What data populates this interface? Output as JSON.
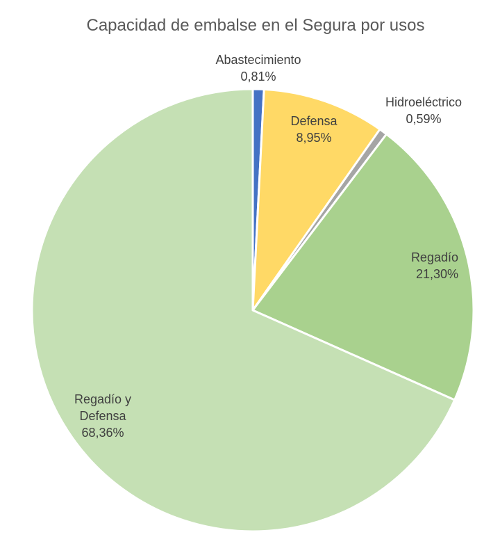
{
  "chart_data": {
    "type": "pie",
    "title": "Capacidad de embalse en el Segura por usos",
    "slices": [
      {
        "label": "Abastecimiento",
        "label_lines": [
          "Abastecimiento"
        ],
        "value": 0.81,
        "value_label": "0,81%",
        "color": "#4472C4"
      },
      {
        "label": "Defensa",
        "label_lines": [
          "Defensa"
        ],
        "value": 8.95,
        "value_label": "8,95%",
        "color": "#FFD966"
      },
      {
        "label": "Hidroeléctrico",
        "label_lines": [
          "Hidroeléctrico"
        ],
        "value": 0.59,
        "value_label": "0,59%",
        "color": "#A5A5A5"
      },
      {
        "label": "Regadío",
        "label_lines": [
          "Regadío"
        ],
        "value": 21.3,
        "value_label": "21,30%",
        "color": "#A9D18E"
      },
      {
        "label": "Regadío y Defensa",
        "label_lines": [
          "Regadío y",
          "Defensa"
        ],
        "value": 68.36,
        "value_label": "68,36%",
        "color": "#C5E0B4"
      }
    ],
    "start_angle": "12 o'clock",
    "direction": "clockwise",
    "legend": "none"
  }
}
